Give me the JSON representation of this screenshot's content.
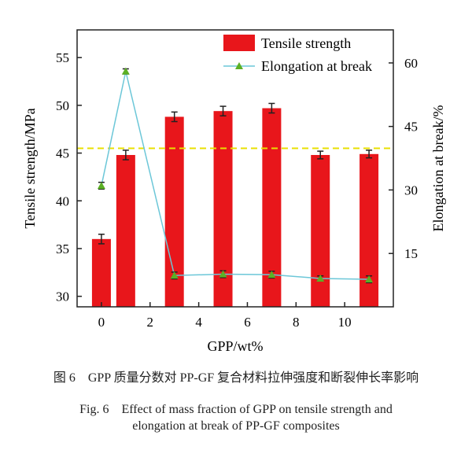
{
  "chart_data": {
    "type": "bar+line",
    "xlabel": "GPP/wt%",
    "ylabel_left": "Tensile strength/MPa",
    "ylabel_right": "Elongation at break/%",
    "xlim": [
      -1,
      12
    ],
    "ylim_left": [
      28.9,
      57.9
    ],
    "ylim_right": [
      2.4,
      67.8
    ],
    "x_ticks": [
      0,
      2,
      4,
      6,
      8,
      10
    ],
    "y_left_ticks": [
      30,
      35,
      40,
      45,
      50,
      55
    ],
    "y_right_ticks": [
      15,
      30,
      45,
      60
    ],
    "x": [
      0,
      1,
      3,
      5,
      7,
      9,
      11
    ],
    "series": [
      {
        "name": "Tensile strength",
        "kind": "bar",
        "axis": "left",
        "color": "#e8161b",
        "values": [
          36.0,
          44.8,
          48.8,
          49.4,
          49.7,
          44.8,
          44.9
        ],
        "errors": [
          0.5,
          0.5,
          0.5,
          0.5,
          0.5,
          0.4,
          0.4
        ]
      },
      {
        "name": "Elongation at break",
        "kind": "line",
        "axis": "right",
        "color": "#6cc7d8",
        "marker_color": "#5bb025",
        "values": [
          31.0,
          58.0,
          9.8,
          10.1,
          10.0,
          9.1,
          8.9
        ],
        "errors": [
          0.8,
          0.6,
          0.8,
          0.8,
          0.8,
          0.6,
          0.8
        ]
      }
    ],
    "reference_line": {
      "axis": "left",
      "value": 45.5,
      "style": "dashed",
      "color": "#e8e000"
    },
    "legend": "top-right",
    "grid": false
  },
  "caption": {
    "zh": "图 6　GPP 质量分数对 PP-GF 复合材料拉伸强度和断裂伸长率影响",
    "en_line1": "Fig. 6　Effect of mass fraction of GPP on tensile strength and",
    "en_line2": "elongation at break of PP-GF composites"
  }
}
